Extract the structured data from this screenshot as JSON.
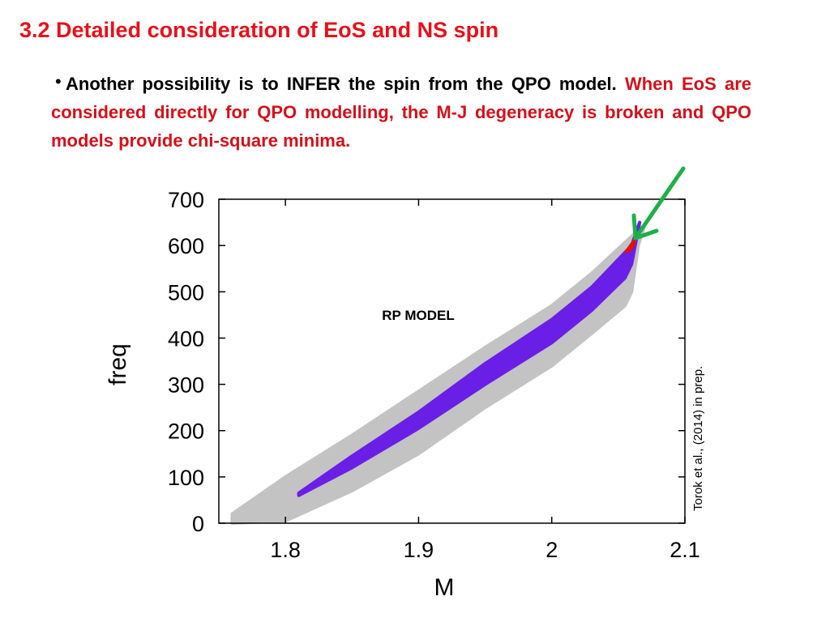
{
  "slide": {
    "title": "3.2 Detailed consideration of EoS and NS spin",
    "bullet_black": "Another possibility is to INFER the spin from the QPO model.",
    "bullet_red": "When EoS are considered directly for QPO modelling, the M-J degeneracy is broken and QPO models provide chi-square minima.",
    "credit": "Torok et al., (2014) in prep.",
    "bullet_glyph": "•"
  },
  "colors": {
    "title": "#e8101a",
    "red_text": "#d4101a",
    "grey_band": "#c3c3c3",
    "purple_band": "#6a1fe6",
    "red_region": "#e01010",
    "arrow": "#1db04a"
  },
  "chart_data": {
    "type": "scatter",
    "title": "",
    "annotation": "RP MODEL",
    "xlabel": "M",
    "ylabel": "freq",
    "xlim": [
      1.75,
      2.1
    ],
    "ylim": [
      0,
      700
    ],
    "xticks": [
      "1.8",
      "1.9",
      "2",
      "2.1"
    ],
    "xtick_values": [
      1.8,
      1.9,
      2.0,
      2.1
    ],
    "yticks": [
      "0",
      "100",
      "200",
      "300",
      "400",
      "500",
      "600",
      "700"
    ],
    "ytick_values": [
      0,
      100,
      200,
      300,
      400,
      500,
      600,
      700
    ],
    "grid": false,
    "series": [
      {
        "color": "#c3c3c3",
        "upper": [
          [
            1.76,
            20
          ],
          [
            1.8,
            100
          ],
          [
            1.85,
            190
          ],
          [
            1.9,
            285
          ],
          [
            1.95,
            380
          ],
          [
            2.0,
            470
          ],
          [
            2.03,
            540
          ],
          [
            2.06,
            620
          ],
          [
            2.07,
            645
          ]
        ],
        "lower": [
          [
            1.76,
            0
          ],
          [
            1.8,
            5
          ],
          [
            1.85,
            70
          ],
          [
            1.9,
            150
          ],
          [
            1.95,
            250
          ],
          [
            2.0,
            340
          ],
          [
            2.03,
            410
          ],
          [
            2.055,
            470
          ],
          [
            2.06,
            500
          ],
          [
            2.065,
            600
          ]
        ]
      },
      {
        "color": "#6a1fe6",
        "upper": [
          [
            1.81,
            65
          ],
          [
            1.85,
            145
          ],
          [
            1.9,
            240
          ],
          [
            1.95,
            345
          ],
          [
            2.0,
            440
          ],
          [
            2.03,
            510
          ],
          [
            2.06,
            600
          ],
          [
            2.066,
            650
          ]
        ],
        "lower": [
          [
            1.81,
            60
          ],
          [
            1.85,
            120
          ],
          [
            1.9,
            205
          ],
          [
            1.95,
            300
          ],
          [
            2.0,
            390
          ],
          [
            2.03,
            460
          ],
          [
            2.055,
            530
          ],
          [
            2.06,
            560
          ]
        ]
      },
      {
        "color": "#e01010",
        "points": [
          [
            2.055,
            585
          ],
          [
            2.058,
            598
          ],
          [
            2.061,
            610
          ],
          [
            2.063,
            618
          ],
          [
            2.062,
            600
          ],
          [
            2.059,
            588
          ]
        ]
      }
    ]
  }
}
